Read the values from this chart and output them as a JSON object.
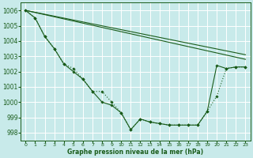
{
  "title": "Graphe pression niveau de la mer (hPa)",
  "background_color": "#c8eaea",
  "grid_color": "#ffffff",
  "line_color": "#1a5c1a",
  "xlim": [
    -0.5,
    23.5
  ],
  "ylim": [
    997.5,
    1006.5
  ],
  "yticks": [
    998,
    999,
    1000,
    1001,
    1002,
    1003,
    1004,
    1005,
    1006
  ],
  "xticks": [
    0,
    1,
    2,
    3,
    4,
    5,
    6,
    7,
    8,
    9,
    10,
    11,
    12,
    13,
    14,
    15,
    16,
    17,
    18,
    19,
    20,
    21,
    22,
    23
  ],
  "series": [
    {
      "x": [
        0,
        1,
        2,
        3,
        4,
        5,
        6,
        7,
        8,
        9,
        10,
        11,
        12,
        13,
        14,
        15,
        16,
        17,
        18,
        19,
        20,
        21,
        22,
        23
      ],
      "y": [
        1006.0,
        1005.5,
        1004.3,
        1003.5,
        1002.5,
        1002.2,
        1001.5,
        1000.7,
        1000.7,
        1000.0,
        999.3,
        998.2,
        998.9,
        998.7,
        998.6,
        998.5,
        998.5,
        998.5,
        998.5,
        999.4,
        1000.4,
        1002.2,
        1002.3,
        1002.3
      ],
      "linestyle": "dotted",
      "marker": "D",
      "markersize": 1.8,
      "linewidth": 0.8
    },
    {
      "x": [
        0,
        1,
        2,
        3,
        4,
        5,
        6,
        7,
        8,
        9,
        10,
        11,
        12,
        13,
        14,
        15,
        16,
        17,
        18,
        19,
        20,
        21,
        22,
        23
      ],
      "y": [
        1006.0,
        1005.5,
        1004.3,
        1003.5,
        1002.5,
        1002.0,
        1001.5,
        1000.7,
        1000.0,
        999.8,
        999.3,
        998.2,
        998.9,
        998.7,
        998.6,
        998.5,
        998.5,
        998.5,
        998.5,
        999.4,
        1002.4,
        1002.2,
        1002.3,
        1002.3
      ],
      "linestyle": "solid",
      "marker": "D",
      "markersize": 1.8,
      "linewidth": 0.8
    },
    {
      "x": [
        0,
        23
      ],
      "y": [
        1006.0,
        1003.1
      ],
      "linestyle": "solid",
      "marker": null,
      "markersize": 0,
      "linewidth": 0.8
    },
    {
      "x": [
        0,
        23
      ],
      "y": [
        1006.0,
        1002.8
      ],
      "linestyle": "solid",
      "marker": null,
      "markersize": 0,
      "linewidth": 0.8
    }
  ],
  "xlabel_fontsize": 5.5,
  "ytick_fontsize": 5.5,
  "xtick_fontsize": 4.5
}
